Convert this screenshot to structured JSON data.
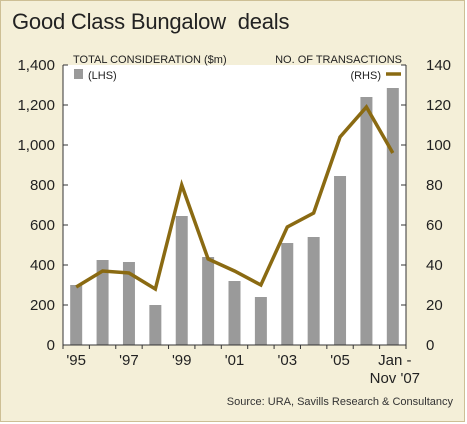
{
  "title": "Good Class Bungalow  deals",
  "source": "Source: URA, Savills Research & Consultancy",
  "colors": {
    "bar": "#9a9a9a",
    "line": "#8a6a12",
    "plot_background": "#ffffff",
    "frame_background": "#f4efd8"
  },
  "legend": {
    "left_label": "TOTAL CONSIDERATION ($m)",
    "left_sub": "(LHS)",
    "right_label": "NO. OF TRANSACTIONS",
    "right_sub": "(RHS)"
  },
  "chart_data": {
    "type": "bar",
    "categories": [
      "1995",
      "1996",
      "1997",
      "1998",
      "1999",
      "2000",
      "2001",
      "2002",
      "2003",
      "2004",
      "2005",
      "2006",
      "Jan - Nov 2007"
    ],
    "x_tick_labels": [
      {
        "category_index": 0,
        "lines": [
          "'95"
        ]
      },
      {
        "category_index": 2,
        "lines": [
          "'97"
        ]
      },
      {
        "category_index": 4,
        "lines": [
          "'99"
        ]
      },
      {
        "category_index": 6,
        "lines": [
          "'01"
        ]
      },
      {
        "category_index": 8,
        "lines": [
          "'03"
        ]
      },
      {
        "category_index": 10,
        "lines": [
          "'05"
        ]
      },
      {
        "category_index": 12,
        "lines": [
          "Jan -",
          "Nov '07"
        ]
      }
    ],
    "series": [
      {
        "name": "TOTAL CONSIDERATION ($m)",
        "axis": "left",
        "type": "bar",
        "values": [
          300,
          425,
          415,
          200,
          645,
          440,
          320,
          240,
          510,
          540,
          845,
          1240,
          1285
        ]
      },
      {
        "name": "NO. OF TRANSACTIONS",
        "axis": "right",
        "type": "line",
        "values": [
          29,
          37,
          36,
          28,
          80,
          43,
          37,
          30,
          59,
          66,
          104,
          119,
          96
        ]
      }
    ],
    "y_left": {
      "min": 0,
      "max": 1400,
      "ticks": [
        0,
        200,
        400,
        600,
        800,
        1000,
        1200,
        1400
      ],
      "tick_labels": [
        "0",
        "200",
        "400",
        "600",
        "800",
        "1,000",
        "1,200",
        "1,400"
      ]
    },
    "y_right": {
      "min": 0,
      "max": 140,
      "ticks": [
        0,
        20,
        40,
        60,
        80,
        100,
        120,
        140
      ],
      "tick_labels": [
        "0",
        "20",
        "40",
        "60",
        "80",
        "100",
        "120",
        "140"
      ]
    },
    "grid": false,
    "legend_position": "top"
  }
}
